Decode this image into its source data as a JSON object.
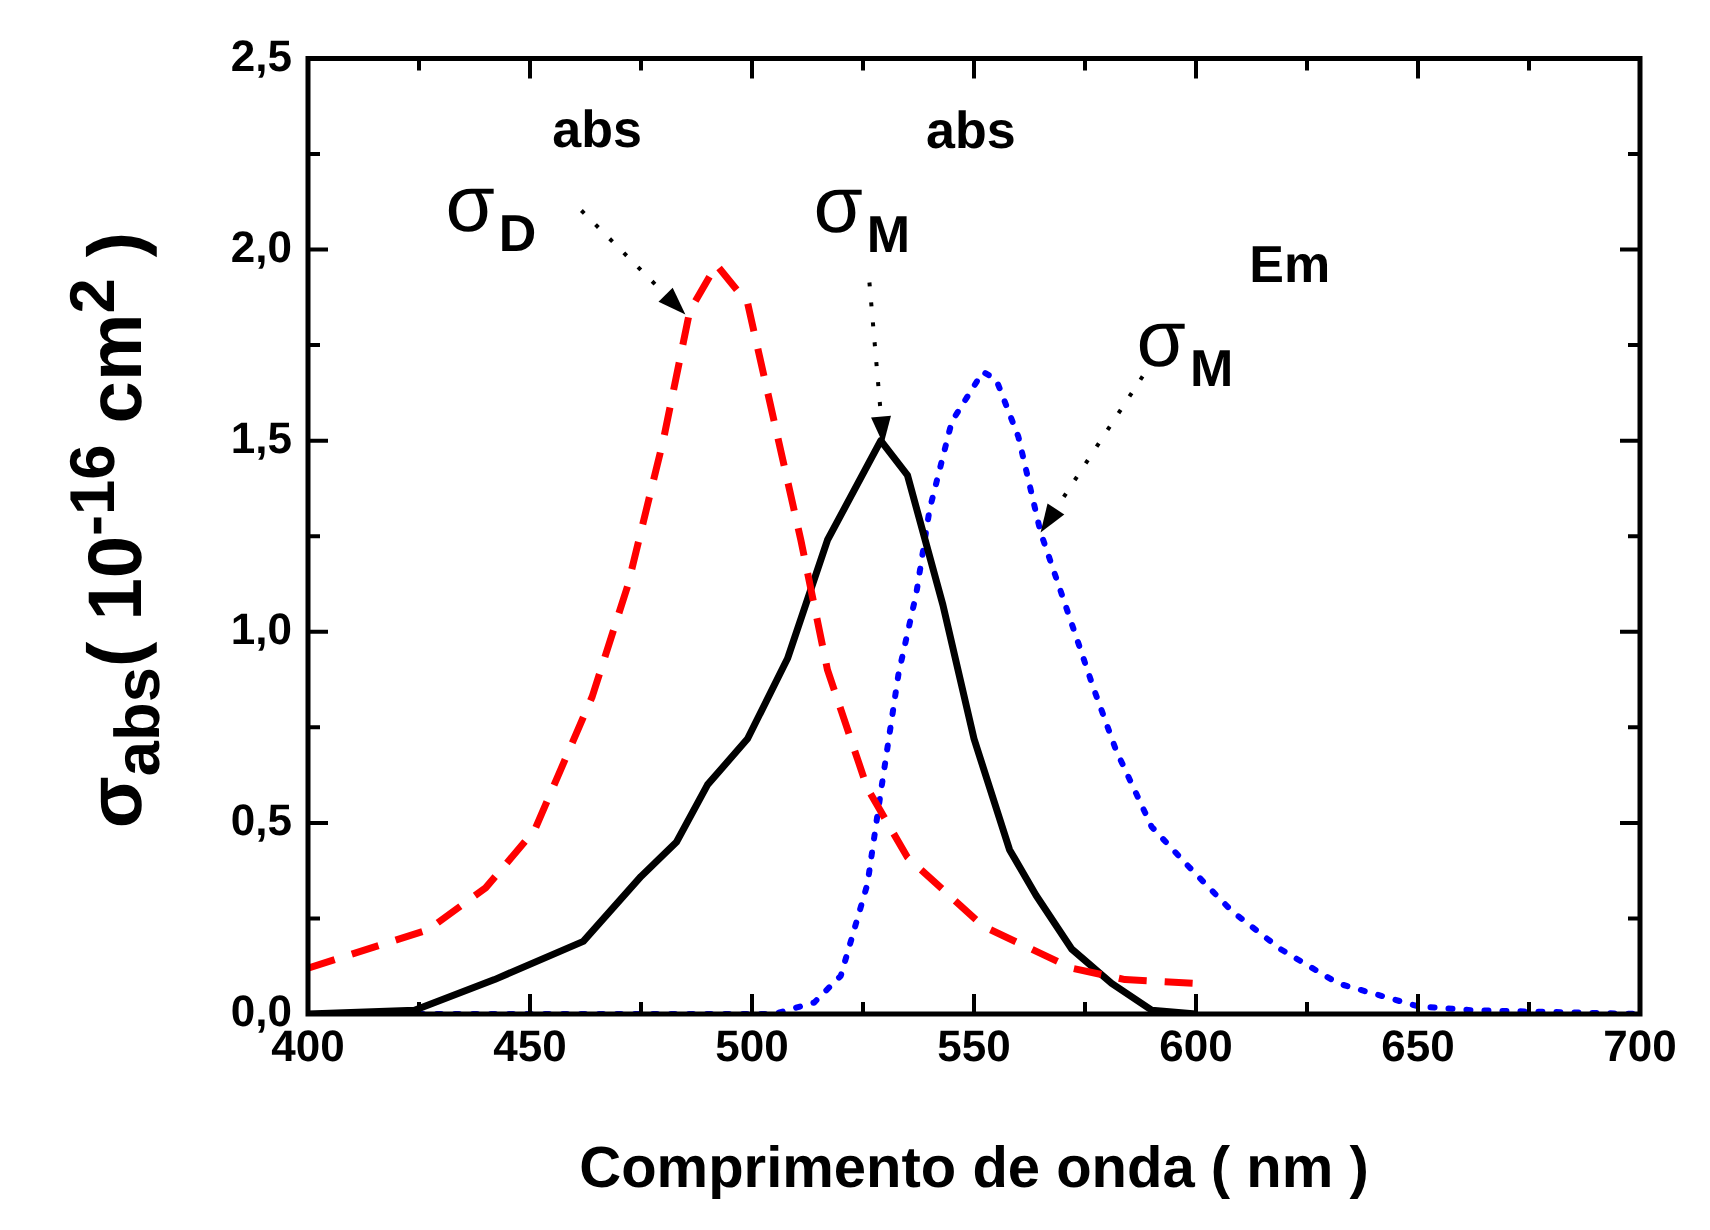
{
  "chart_data": {
    "type": "line",
    "xlabel": "Comprimento de onda ( nm )",
    "ylabel": "σ$_{abs}$( 10$^{-16}$ cm$^{2}$ )",
    "xlim": [
      400,
      700
    ],
    "ylim": [
      0,
      2.5
    ],
    "xticks": [
      400,
      {
        "value": 425,
        "label": null
      },
      450,
      {
        "value": 475,
        "label": null
      },
      500,
      {
        "value": 525,
        "label": null
      },
      550,
      {
        "value": 575,
        "label": null
      },
      600,
      {
        "value": 625,
        "label": null
      },
      650,
      {
        "value": 675,
        "label": null
      },
      700
    ],
    "yticks": [
      {
        "value": 0,
        "label": "0,0"
      },
      {
        "value": 0.25,
        "label": null
      },
      {
        "value": 0.5,
        "label": "0,5"
      },
      {
        "value": 0.75,
        "label": null
      },
      {
        "value": 1,
        "label": "1,0"
      },
      {
        "value": 1.25,
        "label": null
      },
      {
        "value": 1.5,
        "label": "1,5"
      },
      {
        "value": 1.75,
        "label": null
      },
      {
        "value": 2,
        "label": "2,0"
      },
      {
        "value": 2.25,
        "label": null
      },
      {
        "value": 2.5,
        "label": "2,5"
      }
    ],
    "grid": false,
    "legend": false,
    "marker": "none",
    "series": [
      {
        "color": "#ff0000",
        "line_style": "dashed",
        "x": [
          400,
          427,
          440,
          451,
          464,
          472,
          480,
          486,
          492,
          499,
          505,
          511,
          517,
          526,
          535,
          552,
          572,
          584,
          600
        ],
        "values": [
          0.12,
          0.22,
          0.33,
          0.48,
          0.83,
          1.12,
          1.5,
          1.84,
          1.96,
          1.86,
          1.55,
          1.24,
          0.9,
          0.59,
          0.41,
          0.23,
          0.12,
          0.09,
          0.08
        ]
      },
      {
        "color": "#000000",
        "line_style": "solid",
        "x": [
          400,
          424,
          442,
          462,
          475,
          483,
          490,
          499,
          508,
          517,
          529,
          535,
          543,
          550,
          558,
          564,
          572,
          581,
          590,
          600
        ],
        "values": [
          0,
          0.01,
          0.09,
          0.19,
          0.36,
          0.45,
          0.6,
          0.72,
          0.93,
          1.24,
          1.5,
          1.41,
          1.07,
          0.72,
          0.43,
          0.31,
          0.17,
          0.08,
          0.01,
          0
        ]
      },
      {
        "color": "#0000ff",
        "line_style": "dotted",
        "x": [
          425,
          505,
          514,
          520,
          526,
          529,
          533,
          537,
          540,
          545,
          552,
          555,
          560,
          565,
          570,
          577,
          582,
          590,
          598,
          608,
          619,
          632,
          650,
          662,
          700
        ],
        "values": [
          0,
          0,
          0.03,
          0.1,
          0.34,
          0.58,
          0.89,
          1.1,
          1.32,
          1.55,
          1.68,
          1.66,
          1.51,
          1.26,
          1.09,
          0.85,
          0.69,
          0.49,
          0.39,
          0.27,
          0.17,
          0.08,
          0.02,
          0.01,
          0
        ]
      }
    ],
    "annotations": [
      {
        "text": "σ$_{D}$$^{abs}$",
        "x": 485,
        "y": 1.83
      },
      {
        "text": "σ$_{M}$$^{abs}$",
        "x": 529.6,
        "y": 1.49
      },
      {
        "text": "σ$_{M}$$^{Em}$",
        "x": 565,
        "y": 1.26
      }
    ]
  }
}
